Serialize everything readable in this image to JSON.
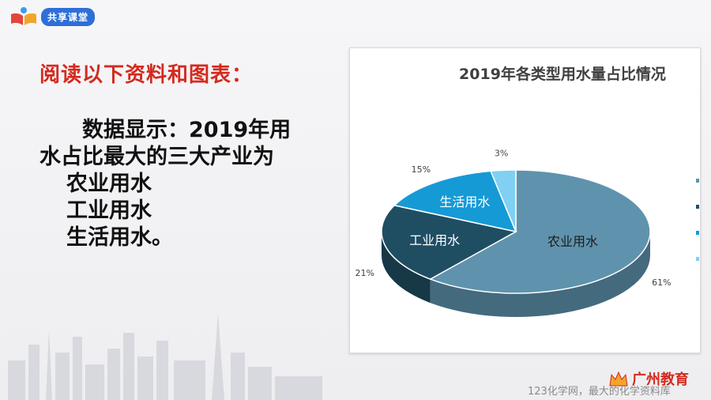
{
  "header": {
    "brand_label": "共享课堂"
  },
  "content": {
    "heading": "阅读以下资料和图表：",
    "paragraph": "数据显示：2019年用水占比最大的三大产业为",
    "items": [
      "农业用水",
      "工业用水",
      "生活用水。"
    ]
  },
  "chart_data": {
    "type": "pie",
    "title": "2019年各类型用水量占比情况",
    "categories": [
      "农业用水",
      "工业用水",
      "生活用水",
      ""
    ],
    "values": [
      61,
      21,
      15,
      3
    ],
    "value_labels": [
      "61%",
      "21%",
      "15%",
      "3%"
    ],
    "colors": [
      "#5f93ad",
      "#1f4e63",
      "#169ad6",
      "#7fd0f2"
    ],
    "style": "3d",
    "legend": "right"
  },
  "footer": {
    "org_logo_text": "广州教育",
    "watermark": "123化学网，最大的化学资料库"
  }
}
